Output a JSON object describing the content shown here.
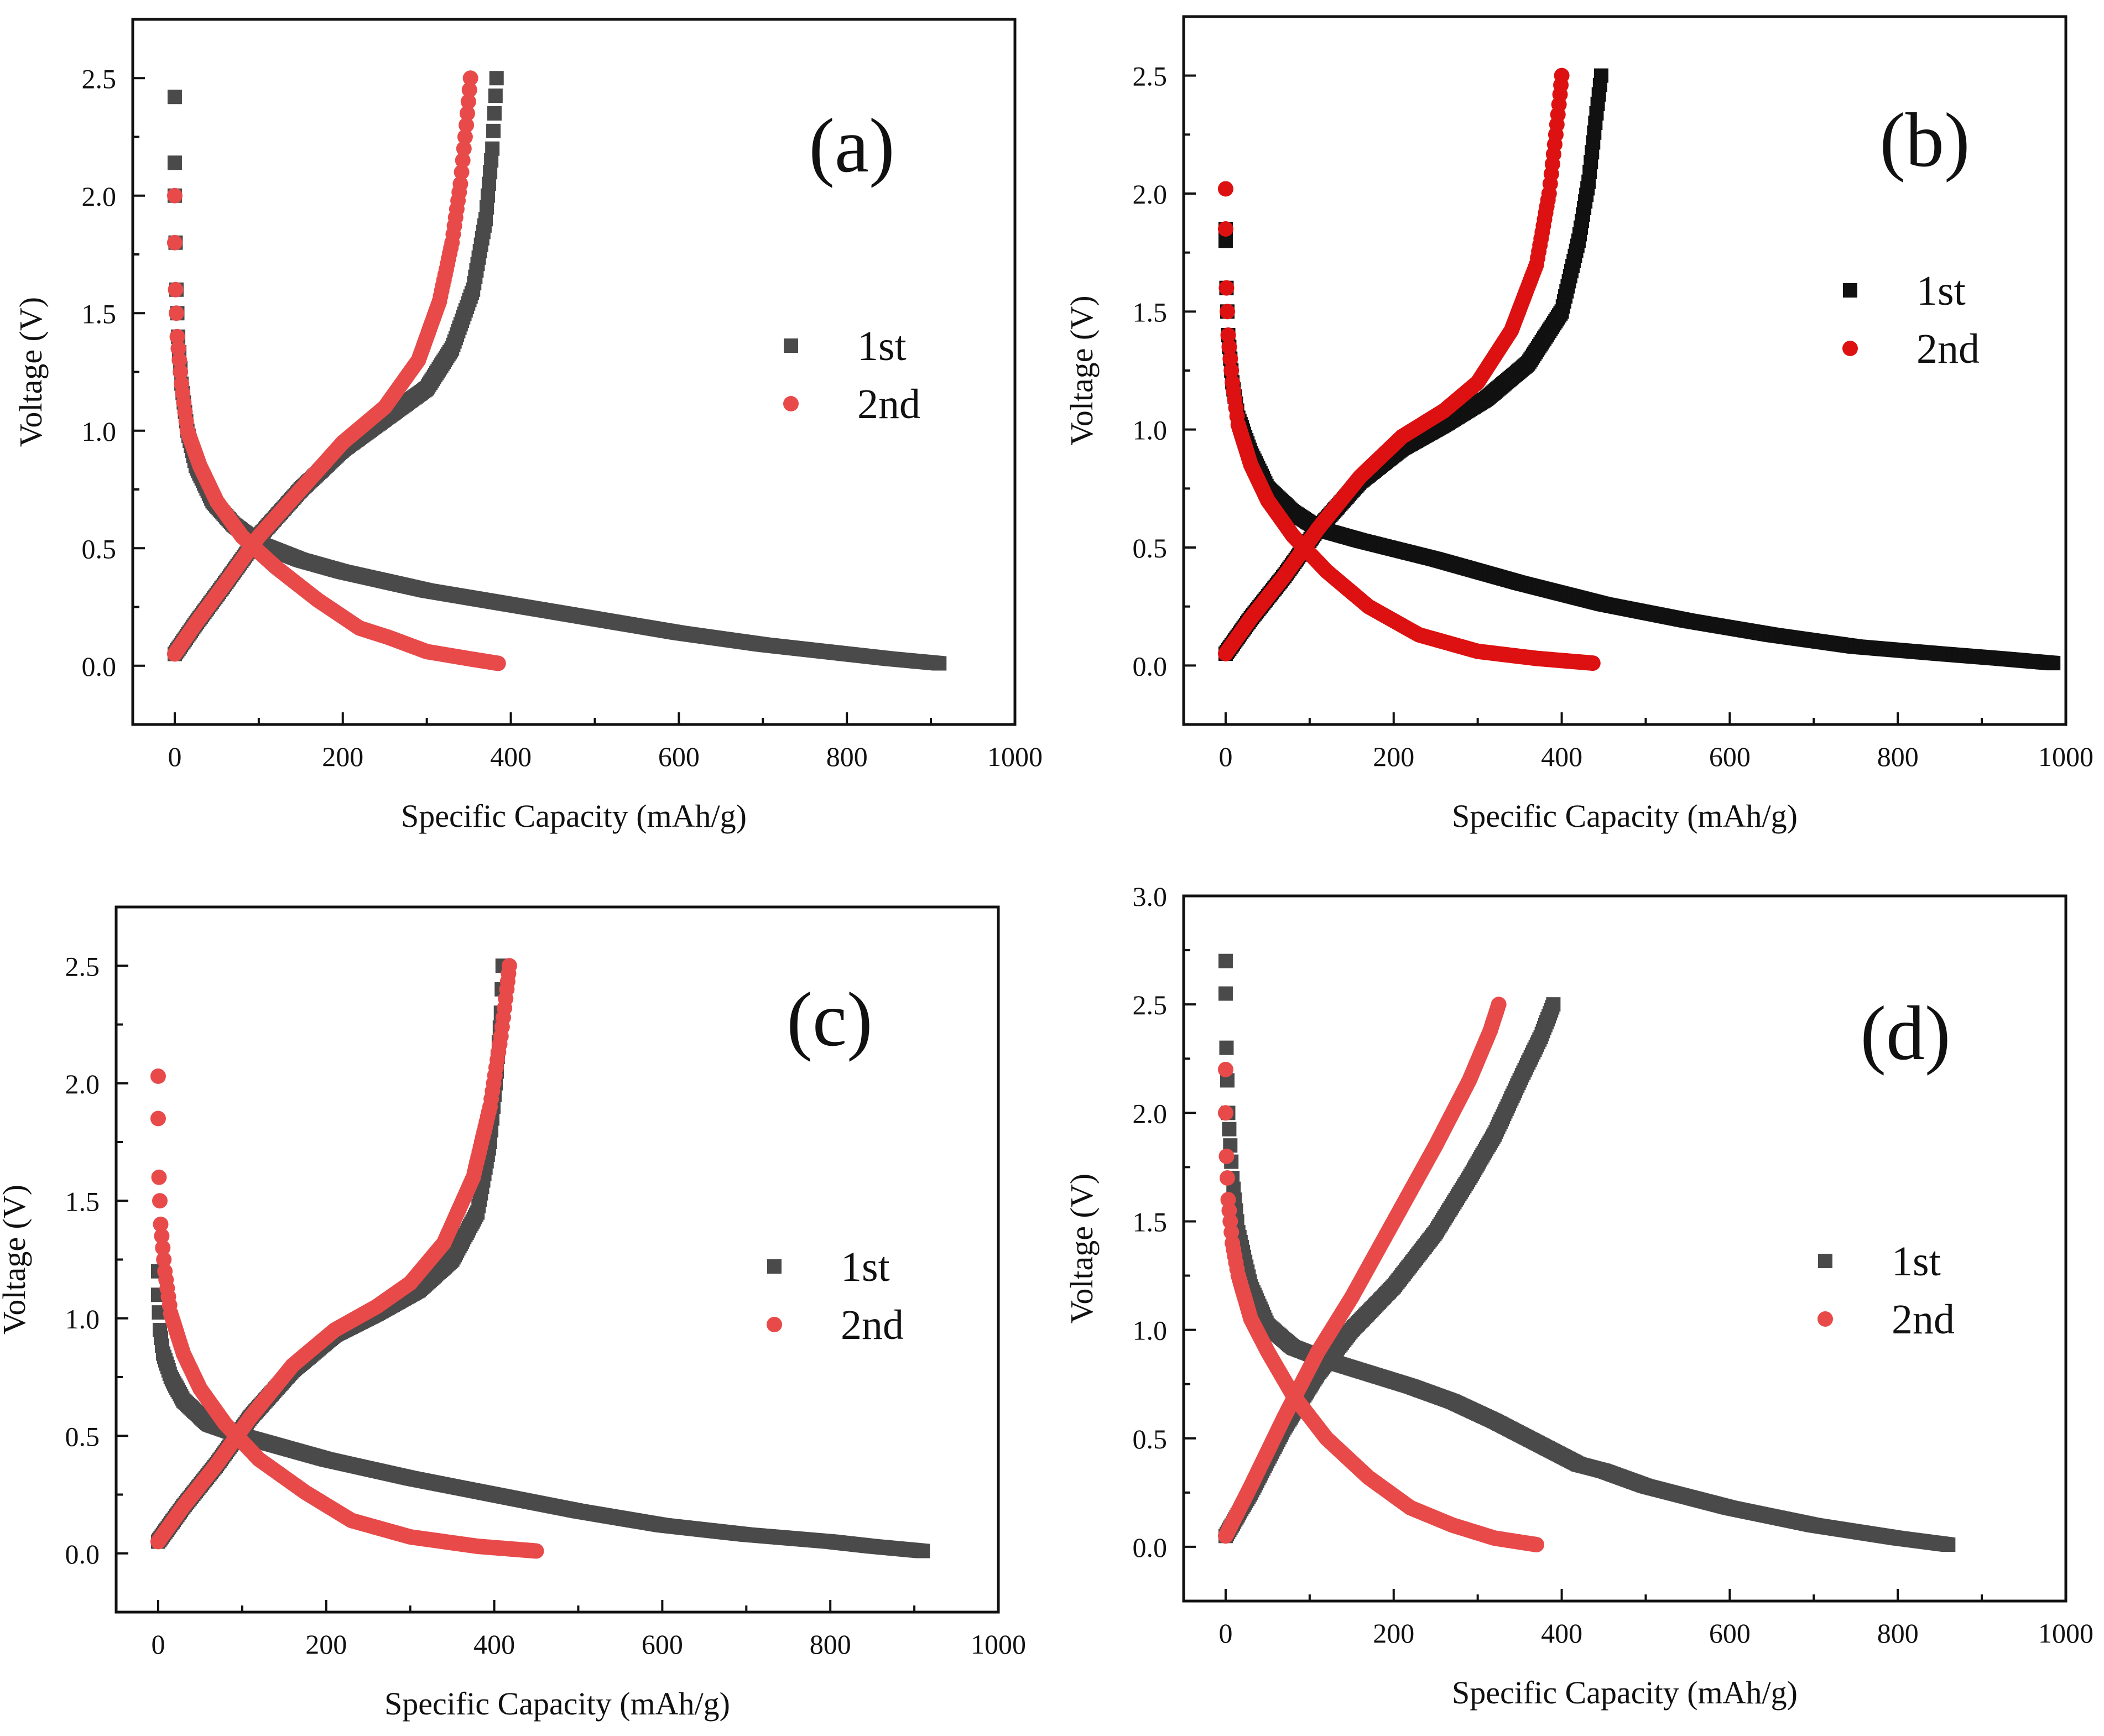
{
  "figure": {
    "description_free": true
  },
  "chart_data": [
    {
      "type": "scatter",
      "panel_label": "(a)",
      "xlabel": "Specific Capacity (mAh/g)",
      "ylabel": "Voltage (V)",
      "xlim": [
        -50,
        1000
      ],
      "ylim": [
        -0.25,
        2.75
      ],
      "xticks": [
        0,
        200,
        400,
        600,
        800,
        1000
      ],
      "yticks": [
        0.0,
        0.5,
        1.0,
        1.5,
        2.0,
        2.5
      ],
      "ytick_labels": [
        "0.0",
        "0.5",
        "1.0",
        "1.5",
        "2.0",
        "2.5"
      ],
      "legend_position": "right",
      "series": [
        {
          "name": "1st",
          "marker": "square",
          "color": "#4a4a4a",
          "discharge": {
            "x": [
              0,
              0,
              0,
              1,
              2,
              4,
              8,
              15,
              25,
              45,
              70,
              100,
              150,
              200,
              300,
              400,
              500,
              600,
              700,
              800,
              850,
              910
            ],
            "y": [
              2.42,
              2.14,
              2.0,
              1.8,
              1.6,
              1.4,
              1.2,
              1.0,
              0.85,
              0.7,
              0.6,
              0.52,
              0.45,
              0.4,
              0.32,
              0.26,
              0.2,
              0.14,
              0.09,
              0.05,
              0.03,
              0.01
            ]
          },
          "charge": {
            "x": [
              0,
              25,
              60,
              100,
              150,
              200,
              250,
              300,
              330,
              355,
              370,
              378,
              383
            ],
            "y": [
              0.05,
              0.18,
              0.35,
              0.55,
              0.75,
              0.92,
              1.05,
              1.18,
              1.35,
              1.6,
              1.9,
              2.2,
              2.5
            ]
          }
        },
        {
          "name": "2nd",
          "marker": "circle",
          "color": "#e84a4a",
          "discharge": {
            "x": [
              0,
              0,
              1,
              3,
              8,
              15,
              30,
              50,
              80,
              120,
              170,
              220,
              255,
              300,
              350,
              385
            ],
            "y": [
              2.0,
              1.8,
              1.6,
              1.4,
              1.2,
              1.0,
              0.85,
              0.7,
              0.55,
              0.42,
              0.28,
              0.16,
              0.12,
              0.06,
              0.03,
              0.01
            ]
          },
          "charge": {
            "x": [
              0,
              25,
              60,
              100,
              150,
              200,
              250,
              290,
              315,
              330,
              340,
              347,
              352
            ],
            "y": [
              0.05,
              0.18,
              0.35,
              0.55,
              0.75,
              0.95,
              1.1,
              1.3,
              1.55,
              1.8,
              2.05,
              2.3,
              2.5
            ]
          }
        }
      ]
    },
    {
      "type": "scatter",
      "panel_label": "(b)",
      "xlabel": "Specific Capacity (mAh/g)",
      "ylabel": "Voltage (V)",
      "xlim": [
        -50,
        1000
      ],
      "ylim": [
        -0.25,
        2.75
      ],
      "xticks": [
        0,
        200,
        400,
        600,
        800,
        1000
      ],
      "yticks": [
        0.0,
        0.5,
        1.0,
        1.5,
        2.0,
        2.5
      ],
      "ytick_labels": [
        "0.0",
        "0.5",
        "1.0",
        "1.5",
        "2.0",
        "2.5"
      ],
      "legend_position": "right",
      "series": [
        {
          "name": "1st",
          "marker": "square",
          "color": "#111111",
          "discharge": {
            "x": [
              0,
              0,
              1,
              3,
              8,
              15,
              30,
              50,
              80,
              110,
              160,
              250,
              350,
              450,
              550,
              650,
              750,
              850,
              920,
              985
            ],
            "y": [
              1.85,
              1.8,
              1.6,
              1.4,
              1.2,
              1.05,
              0.9,
              0.75,
              0.65,
              0.58,
              0.53,
              0.45,
              0.35,
              0.26,
              0.19,
              0.13,
              0.08,
              0.05,
              0.03,
              0.01
            ]
          },
          "charge": {
            "x": [
              0,
              30,
              70,
              110,
              160,
              210,
              260,
              310,
              360,
              400,
              420,
              432,
              440,
              447
            ],
            "y": [
              0.05,
              0.2,
              0.38,
              0.58,
              0.78,
              0.92,
              1.02,
              1.13,
              1.28,
              1.5,
              1.8,
              2.05,
              2.3,
              2.5
            ]
          }
        },
        {
          "name": "2nd",
          "marker": "circle",
          "color": "#dd1111",
          "discharge": {
            "x": [
              0,
              0,
              1,
              3,
              8,
              15,
              30,
              50,
              80,
              120,
              170,
              230,
              300,
              370,
              437
            ],
            "y": [
              2.02,
              1.85,
              1.6,
              1.4,
              1.2,
              1.02,
              0.85,
              0.7,
              0.55,
              0.4,
              0.25,
              0.13,
              0.06,
              0.03,
              0.01
            ]
          },
          "charge": {
            "x": [
              0,
              30,
              70,
              110,
              160,
              210,
              260,
              300,
              340,
              370,
              385,
              393,
              398,
              400
            ],
            "y": [
              0.05,
              0.2,
              0.38,
              0.58,
              0.8,
              0.97,
              1.08,
              1.2,
              1.42,
              1.7,
              2.0,
              2.25,
              2.42,
              2.5
            ]
          }
        }
      ]
    },
    {
      "type": "scatter",
      "panel_label": "(c)",
      "xlabel": "Specific Capacity (mAh/g)",
      "ylabel": "Voltage (V)",
      "xlim": [
        -50,
        1000
      ],
      "ylim": [
        -0.25,
        2.75
      ],
      "xticks": [
        0,
        200,
        400,
        600,
        800,
        1000
      ],
      "yticks": [
        0.0,
        0.5,
        1.0,
        1.5,
        2.0,
        2.5
      ],
      "ytick_labels": [
        "0.0",
        "0.5",
        "1.0",
        "1.5",
        "2.0",
        "2.5"
      ],
      "legend_position": "right",
      "series": [
        {
          "name": "1st",
          "marker": "square",
          "color": "#4a4a4a",
          "discharge": {
            "x": [
              0,
              0,
              2,
              6,
              15,
              30,
              60,
              100,
              150,
              200,
              300,
              400,
              500,
              600,
              700,
              800,
              850,
              910
            ],
            "y": [
              1.2,
              1.1,
              0.95,
              0.85,
              0.75,
              0.65,
              0.55,
              0.5,
              0.45,
              0.4,
              0.32,
              0.25,
              0.18,
              0.12,
              0.08,
              0.05,
              0.03,
              0.01
            ]
          },
          "charge": {
            "x": [
              0,
              30,
              70,
              110,
              160,
              210,
              260,
              310,
              350,
              380,
              395,
              403,
              408,
              410
            ],
            "y": [
              0.05,
              0.2,
              0.38,
              0.58,
              0.78,
              0.93,
              1.02,
              1.12,
              1.25,
              1.45,
              1.75,
              2.05,
              2.3,
              2.5
            ]
          }
        },
        {
          "name": "2nd",
          "marker": "circle",
          "color": "#e84a4a",
          "discharge": {
            "x": [
              0,
              0,
              1,
              3,
              8,
              15,
              30,
              50,
              80,
              120,
              175,
              230,
              300,
              380,
              450
            ],
            "y": [
              2.03,
              1.85,
              1.6,
              1.4,
              1.2,
              1.02,
              0.85,
              0.7,
              0.55,
              0.4,
              0.26,
              0.14,
              0.07,
              0.03,
              0.01
            ]
          },
          "charge": {
            "x": [
              0,
              30,
              70,
              110,
              160,
              210,
              260,
              300,
              340,
              375,
              395,
              408,
              415,
              418
            ],
            "y": [
              0.05,
              0.2,
              0.38,
              0.58,
              0.8,
              0.95,
              1.05,
              1.15,
              1.32,
              1.6,
              1.9,
              2.2,
              2.4,
              2.5
            ]
          }
        }
      ]
    },
    {
      "type": "scatter",
      "panel_label": "(d)",
      "xlabel": "Specific Capacity (mAh/g)",
      "ylabel": "Voltage (V)",
      "xlim": [
        -50,
        1000
      ],
      "ylim": [
        -0.25,
        3.0
      ],
      "xticks": [
        0,
        200,
        400,
        600,
        800,
        1000
      ],
      "yticks": [
        0.0,
        0.5,
        1.0,
        1.5,
        2.0,
        2.5,
        3.0
      ],
      "ytick_labels": [
        "0.0",
        "0.5",
        "1.0",
        "1.5",
        "2.0",
        "2.5",
        "3.0"
      ],
      "legend_position": "right",
      "series": [
        {
          "name": "1st",
          "marker": "square",
          "color": "#4a4a4a",
          "discharge": {
            "x": [
              0,
              0,
              1,
              3,
              8,
              15,
              30,
              50,
              80,
              120,
              170,
              220,
              270,
              320,
              370,
              420,
              450,
              500,
              600,
              700,
              800,
              860
            ],
            "y": [
              2.7,
              2.55,
              2.3,
              2.0,
              1.7,
              1.45,
              1.2,
              1.02,
              0.92,
              0.86,
              0.8,
              0.74,
              0.67,
              0.58,
              0.48,
              0.38,
              0.35,
              0.28,
              0.18,
              0.1,
              0.04,
              0.01
            ]
          },
          "charge": {
            "x": [
              0,
              30,
              70,
              110,
              150,
              200,
              250,
              290,
              320,
              350,
              375,
              390
            ],
            "y": [
              0.05,
              0.25,
              0.55,
              0.8,
              1.0,
              1.2,
              1.45,
              1.7,
              1.9,
              2.15,
              2.35,
              2.5
            ]
          }
        },
        {
          "name": "2nd",
          "marker": "circle",
          "color": "#e84a4a",
          "discharge": {
            "x": [
              0,
              0,
              1,
              3,
              8,
              15,
              30,
              50,
              80,
              120,
              170,
              220,
              270,
              320,
              370
            ],
            "y": [
              2.2,
              2.0,
              1.8,
              1.6,
              1.4,
              1.25,
              1.05,
              0.9,
              0.7,
              0.5,
              0.32,
              0.18,
              0.1,
              0.04,
              0.01
            ]
          },
          "charge": {
            "x": [
              0,
              30,
              70,
              110,
              150,
              200,
              250,
              290,
              315,
              325
            ],
            "y": [
              0.05,
              0.28,
              0.6,
              0.9,
              1.15,
              1.5,
              1.85,
              2.15,
              2.38,
              2.5
            ]
          }
        }
      ]
    }
  ]
}
